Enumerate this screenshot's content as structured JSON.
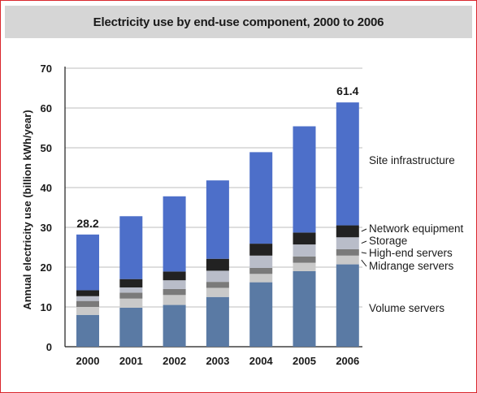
{
  "chart_data": {
    "type": "bar",
    "stacked": true,
    "title": "Electricity use by end-use component, 2000 to 2006",
    "xlabel": "",
    "ylabel": "Annual electricity use (billion kWh/year)",
    "ylim": [
      0,
      70
    ],
    "yticks": [
      0,
      10,
      20,
      30,
      40,
      50,
      60,
      70
    ],
    "grid": true,
    "categories": [
      "2000",
      "2001",
      "2002",
      "2003",
      "2004",
      "2005",
      "2006"
    ],
    "series": [
      {
        "name": "Volume servers",
        "color": "#5a7aa4",
        "values": [
          8.0,
          9.8,
          10.5,
          12.5,
          16.2,
          19.0,
          20.7
        ]
      },
      {
        "name": "Midrange servers",
        "color": "#c9c9c9",
        "values": [
          2.0,
          2.3,
          2.5,
          2.3,
          2.1,
          2.1,
          2.2
        ]
      },
      {
        "name": "High-end servers",
        "color": "#7a7a7a",
        "values": [
          1.5,
          1.5,
          1.5,
          1.5,
          1.5,
          1.6,
          1.6
        ]
      },
      {
        "name": "Storage",
        "color": "#b9bdc9",
        "values": [
          1.2,
          1.3,
          2.2,
          2.8,
          3.1,
          3.0,
          3.0
        ]
      },
      {
        "name": "Network equipment",
        "color": "#222222",
        "values": [
          1.5,
          2.1,
          2.2,
          3.0,
          3.0,
          3.0,
          3.0
        ]
      },
      {
        "name": "Site infrastructure",
        "color": "#4d6fc9",
        "values": [
          14.0,
          15.8,
          18.9,
          19.7,
          23.0,
          26.7,
          30.9
        ]
      }
    ],
    "totals": [
      28.2,
      32.8,
      37.8,
      41.8,
      48.9,
      55.4,
      61.4
    ],
    "data_labels": [
      {
        "index": 0,
        "text": "28.2"
      },
      {
        "index": 6,
        "text": "61.4"
      }
    ],
    "legend_placement": "right"
  }
}
